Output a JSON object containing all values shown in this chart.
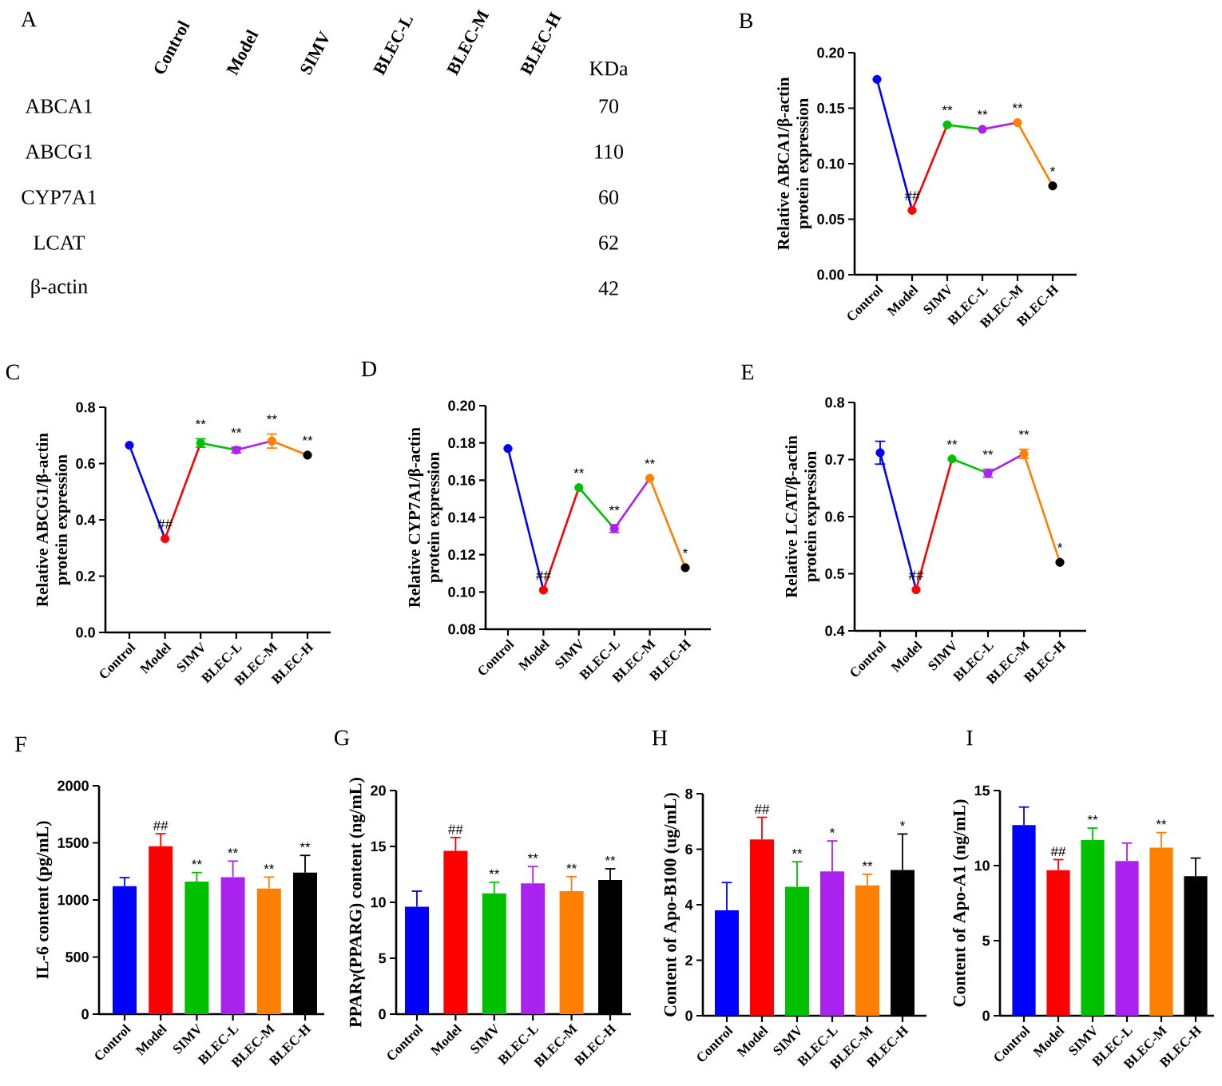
{
  "chart_data": [
    {
      "type": "other",
      "title": "A",
      "categories": [
        "Control",
        "Model",
        "SIMV",
        "BLEC-L",
        "BLEC-M",
        "BLEC-H"
      ],
      "y_categories": [
        "ABCA1",
        "ABCG1",
        "CYP7A1",
        "LCAT",
        "β-actin"
      ],
      "y2_categories": [
        "70",
        "110",
        "60",
        "62",
        "42"
      ],
      "annotations": [
        "KDa"
      ]
    },
    {
      "type": "line",
      "title": "B",
      "ylabel": "Relative ABCA1/β-actin protein expression",
      "categories": [
        "Control",
        "Model",
        "SIMV",
        "BLEC-L",
        "BLEC-M",
        "BLEC-H"
      ],
      "series": [
        {
          "color": "#0000ff",
          "values": [
            0.176,
            0.058,
            null,
            null,
            null,
            null
          ]
        },
        {
          "color": "#ff0000",
          "values": [
            null,
            0.058,
            0.135,
            null,
            null,
            null
          ]
        },
        {
          "color": "#00c000",
          "values": [
            null,
            null,
            0.135,
            0.131,
            null,
            null
          ]
        },
        {
          "color": "#aa22ee",
          "values": [
            null,
            null,
            null,
            0.131,
            0.137,
            null
          ]
        },
        {
          "color": "#ff8000",
          "values": [
            null,
            null,
            null,
            null,
            0.137,
            0.08
          ]
        },
        {
          "type": "scatter",
          "marker": "circle",
          "colors": [
            "#0000ff",
            "#ff0000",
            "#00c000",
            "#aa22ee",
            "#ff8000",
            "#000000"
          ],
          "values": [
            0.176,
            0.058,
            0.135,
            0.131,
            0.137,
            0.08
          ]
        }
      ],
      "ylim": [
        0,
        0.2
      ],
      "yticks": [
        {
          "value": 0,
          "label": "0.00"
        },
        {
          "value": 0.05,
          "label": "0.05"
        },
        {
          "value": 0.1,
          "label": "0.10"
        },
        {
          "value": 0.15,
          "label": "0.15"
        },
        {
          "value": 0.2,
          "label": "0.20"
        }
      ],
      "annotations": [
        {
          "text": "##",
          "x": "Model",
          "y": 0.058
        },
        {
          "text": "**",
          "x": "SIMV",
          "y": 0.135
        },
        {
          "text": "**",
          "x": "BLEC-L",
          "y": 0.131
        },
        {
          "text": "**",
          "x": "BLEC-M",
          "y": 0.137
        },
        {
          "text": "*",
          "x": "BLEC-H",
          "y": 0.08
        }
      ]
    },
    {
      "type": "line",
      "title": "C",
      "ylabel": "Relative ABCG1/β-actin protein expression",
      "categories": [
        "Control",
        "Model",
        "SIMV",
        "BLEC-L",
        "BLEC-M",
        "BLEC-H"
      ],
      "series": [
        {
          "color": "#0000ff",
          "values": [
            0.665,
            0.333,
            null,
            null,
            null,
            null
          ]
        },
        {
          "color": "#ff0000",
          "values": [
            null,
            0.333,
            0.673,
            null,
            null,
            null
          ]
        },
        {
          "color": "#00c000",
          "values": [
            null,
            null,
            0.673,
            0.648,
            null,
            null
          ]
        },
        {
          "color": "#aa22ee",
          "values": [
            null,
            null,
            null,
            0.648,
            0.68,
            null
          ]
        },
        {
          "color": "#ff8000",
          "values": [
            null,
            null,
            null,
            null,
            0.68,
            0.63
          ]
        },
        {
          "type": "scatter",
          "marker": "circle",
          "colors": [
            "#0000ff",
            "#ff0000",
            "#00c000",
            "#aa22ee",
            "#ff8000",
            "#000000"
          ],
          "values": [
            0.665,
            0.333,
            0.673,
            0.648,
            0.68,
            0.63
          ],
          "errors": [
            null,
            null,
            0.015,
            0.01,
            0.025,
            null
          ]
        }
      ],
      "ylim": [
        0,
        0.8
      ],
      "yticks": [
        {
          "value": 0,
          "label": "0.0"
        },
        {
          "value": 0.2,
          "label": "0.2"
        },
        {
          "value": 0.4,
          "label": "0.4"
        },
        {
          "value": 0.6,
          "label": "0.6"
        },
        {
          "value": 0.8,
          "label": "0.8"
        }
      ],
      "annotations": [
        {
          "text": "##",
          "x": "Model",
          "y": 0.333
        },
        {
          "text": "**",
          "x": "SIMV",
          "y": 0.688
        },
        {
          "text": "**",
          "x": "BLEC-L",
          "y": 0.658
        },
        {
          "text": "**",
          "x": "BLEC-M",
          "y": 0.705
        },
        {
          "text": "**",
          "x": "BLEC-H",
          "y": 0.63
        }
      ]
    },
    {
      "type": "line",
      "title": "D",
      "ylabel": "Relative CYP7A1/β-actin protein expression",
      "categories": [
        "Control",
        "Model",
        "SIMV",
        "BLEC-L",
        "BLEC-M",
        "BLEC-H"
      ],
      "series": [
        {
          "color": "#0000ff",
          "values": [
            0.177,
            0.101,
            null,
            null,
            null,
            null
          ]
        },
        {
          "color": "#ff0000",
          "values": [
            null,
            0.101,
            0.156,
            null,
            null,
            null
          ]
        },
        {
          "color": "#00c000",
          "values": [
            null,
            null,
            0.156,
            0.134,
            null,
            null
          ]
        },
        {
          "color": "#aa22ee",
          "values": [
            null,
            null,
            null,
            0.134,
            0.161,
            null
          ]
        },
        {
          "color": "#ff8000",
          "values": [
            null,
            null,
            null,
            null,
            0.161,
            0.113
          ]
        },
        {
          "type": "scatter",
          "marker": "circle",
          "colors": [
            "#0000ff",
            "#ff0000",
            "#00c000",
            "#aa22ee",
            "#ff8000",
            "#000000"
          ],
          "values": [
            0.177,
            0.101,
            0.156,
            0.134,
            0.161,
            0.113
          ],
          "errors": [
            null,
            null,
            null,
            0.002,
            null,
            null
          ]
        }
      ],
      "ylim": [
        0.08,
        0.2
      ],
      "yticks": [
        {
          "value": 0.08,
          "label": "0.08"
        },
        {
          "value": 0.1,
          "label": "0.10"
        },
        {
          "value": 0.12,
          "label": "0.12"
        },
        {
          "value": 0.14,
          "label": "0.14"
        },
        {
          "value": 0.16,
          "label": "0.16"
        },
        {
          "value": 0.18,
          "label": "0.18"
        },
        {
          "value": 0.2,
          "label": "0.20"
        }
      ],
      "annotations": [
        {
          "text": "##",
          "x": "Model",
          "y": 0.101
        },
        {
          "text": "**",
          "x": "SIMV",
          "y": 0.156
        },
        {
          "text": "**",
          "x": "BLEC-L",
          "y": 0.136
        },
        {
          "text": "**",
          "x": "BLEC-M",
          "y": 0.161
        },
        {
          "text": "*",
          "x": "BLEC-H",
          "y": 0.113
        }
      ]
    },
    {
      "type": "line",
      "title": "E",
      "ylabel": "Relative LCAT/β-actin protein expression",
      "categories": [
        "Control",
        "Model",
        "SIMV",
        "BLEC-L",
        "BLEC-M",
        "BLEC-H"
      ],
      "series": [
        {
          "color": "#0000ff",
          "values": [
            0.712,
            0.472,
            null,
            null,
            null,
            null
          ]
        },
        {
          "color": "#ff0000",
          "values": [
            null,
            0.472,
            0.701,
            null,
            null,
            null
          ]
        },
        {
          "color": "#00c000",
          "values": [
            null,
            null,
            0.701,
            0.676,
            null,
            null
          ]
        },
        {
          "color": "#aa22ee",
          "values": [
            null,
            null,
            null,
            0.676,
            0.71,
            null
          ]
        },
        {
          "color": "#ff8000",
          "values": [
            null,
            null,
            null,
            null,
            0.71,
            0.52
          ]
        },
        {
          "type": "scatter",
          "marker": "circle",
          "colors": [
            "#0000ff",
            "#ff0000",
            "#00c000",
            "#aa22ee",
            "#ff8000",
            "#000000"
          ],
          "values": [
            0.712,
            0.472,
            0.701,
            0.676,
            0.71,
            0.52
          ],
          "errors": [
            0.02,
            null,
            null,
            0.007,
            0.008,
            null
          ]
        }
      ],
      "ylim": [
        0.4,
        0.8
      ],
      "yticks": [
        {
          "value": 0.4,
          "label": "0.4"
        },
        {
          "value": 0.5,
          "label": "0.5"
        },
        {
          "value": 0.6,
          "label": "0.6"
        },
        {
          "value": 0.7,
          "label": "0.7"
        },
        {
          "value": 0.8,
          "label": "0.8"
        }
      ],
      "annotations": [
        {
          "text": "##",
          "x": "Model",
          "y": 0.472
        },
        {
          "text": "**",
          "x": "SIMV",
          "y": 0.701
        },
        {
          "text": "**",
          "x": "BLEC-L",
          "y": 0.683
        },
        {
          "text": "**",
          "x": "BLEC-M",
          "y": 0.718
        },
        {
          "text": "*",
          "x": "BLEC-H",
          "y": 0.52
        }
      ]
    },
    {
      "type": "bar",
      "title": "F",
      "ylabel": "IL-6 content (pg/mL)",
      "categories": [
        "Control",
        "Model",
        "SIMV",
        "BLEC-L",
        "BLEC-M",
        "BLEC-H"
      ],
      "values": [
        1120,
        1470,
        1160,
        1200,
        1100,
        1240
      ],
      "errors": [
        [
          1120,
          1195
        ],
        [
          1470,
          1580
        ],
        [
          1160,
          1240
        ],
        [
          1200,
          1340
        ],
        [
          1100,
          1200
        ],
        [
          1240,
          1390
        ]
      ],
      "colors": [
        "#0000ff",
        "#ff0000",
        "#00c000",
        "#aa22ee",
        "#ff8000",
        "#000000"
      ],
      "ylim": [
        0,
        2000
      ],
      "yticks": [
        0,
        500,
        1000,
        1500,
        2000
      ],
      "annotations": [
        {
          "text": "##",
          "x": "Model",
          "y": 1580
        },
        {
          "text": "**",
          "x": "SIMV",
          "y": 1240
        },
        {
          "text": "**",
          "x": "BLEC-L",
          "y": 1340
        },
        {
          "text": "**",
          "x": "BLEC-M",
          "y": 1200
        },
        {
          "text": "**",
          "x": "BLEC-H",
          "y": 1390
        }
      ]
    },
    {
      "type": "bar",
      "title": "G",
      "ylabel": "PPARγ(PPARG) content (ng/mL)",
      "categories": [
        "Control",
        "Model",
        "SIMV",
        "BLEC-L",
        "BLEC-M",
        "BLEC-H"
      ],
      "values": [
        9.6,
        14.6,
        10.8,
        11.7,
        11.0,
        12.0
      ],
      "errors": [
        [
          9.6,
          11.0
        ],
        [
          14.6,
          15.8
        ],
        [
          10.8,
          11.8
        ],
        [
          11.7,
          13.2
        ],
        [
          11.0,
          12.3
        ],
        [
          12.0,
          13.0
        ]
      ],
      "colors": [
        "#0000ff",
        "#ff0000",
        "#00c000",
        "#aa22ee",
        "#ff8000",
        "#000000"
      ],
      "ylim": [
        0,
        20
      ],
      "yticks": [
        0,
        5,
        10,
        15,
        20
      ],
      "annotations": [
        {
          "text": "##",
          "x": "Model",
          "y": 15.8
        },
        {
          "text": "**",
          "x": "SIMV",
          "y": 11.8
        },
        {
          "text": "**",
          "x": "BLEC-L",
          "y": 13.2
        },
        {
          "text": "**",
          "x": "BLEC-M",
          "y": 12.3
        },
        {
          "text": "**",
          "x": "BLEC-H",
          "y": 13.0
        }
      ]
    },
    {
      "type": "bar",
      "title": "H",
      "ylabel": "Content of Apo-B100 (ug/mL)",
      "categories": [
        "Control",
        "Model",
        "SIMV",
        "BLEC-L",
        "BLEC-M",
        "BLEC-H"
      ],
      "values": [
        3.8,
        6.35,
        4.65,
        5.2,
        4.7,
        5.25
      ],
      "errors": [
        [
          3.8,
          4.8
        ],
        [
          6.35,
          7.15
        ],
        [
          4.65,
          5.55
        ],
        [
          5.2,
          6.3
        ],
        [
          4.7,
          5.1
        ],
        [
          5.25,
          6.55
        ]
      ],
      "colors": [
        "#0000ff",
        "#ff0000",
        "#00c000",
        "#aa22ee",
        "#ff8000",
        "#000000"
      ],
      "ylim": [
        0,
        8
      ],
      "yticks": [
        0,
        2,
        4,
        6,
        8
      ],
      "annotations": [
        {
          "text": "##",
          "x": "Model",
          "y": 7.15
        },
        {
          "text": "**",
          "x": "SIMV",
          "y": 5.55
        },
        {
          "text": "*",
          "x": "BLEC-L",
          "y": 6.3
        },
        {
          "text": "**",
          "x": "BLEC-M",
          "y": 5.1
        },
        {
          "text": "*",
          "x": "BLEC-H",
          "y": 6.55
        }
      ]
    },
    {
      "type": "bar",
      "title": "I",
      "ylabel": "Content of Apo-A1 (ng/mL)",
      "categories": [
        "Control",
        "Model",
        "SIMV",
        "BLEC-L",
        "BLEC-M",
        "BLEC-H"
      ],
      "values": [
        12.7,
        9.7,
        11.7,
        10.3,
        11.2,
        9.3
      ],
      "errors": [
        [
          12.7,
          13.9
        ],
        [
          9.7,
          10.4
        ],
        [
          11.7,
          12.5
        ],
        [
          10.3,
          11.5
        ],
        [
          11.2,
          12.2
        ],
        [
          9.3,
          10.5
        ]
      ],
      "colors": [
        "#0000ff",
        "#ff0000",
        "#00c000",
        "#aa22ee",
        "#ff8000",
        "#000000"
      ],
      "ylim": [
        0,
        15
      ],
      "yticks": [
        0,
        5,
        10,
        15
      ],
      "annotations": [
        {
          "text": "##",
          "x": "Model",
          "y": 10.4
        },
        {
          "text": "**",
          "x": "SIMV",
          "y": 12.5
        },
        {
          "text": "**",
          "x": "BLEC-M",
          "y": 12.2
        }
      ]
    }
  ]
}
